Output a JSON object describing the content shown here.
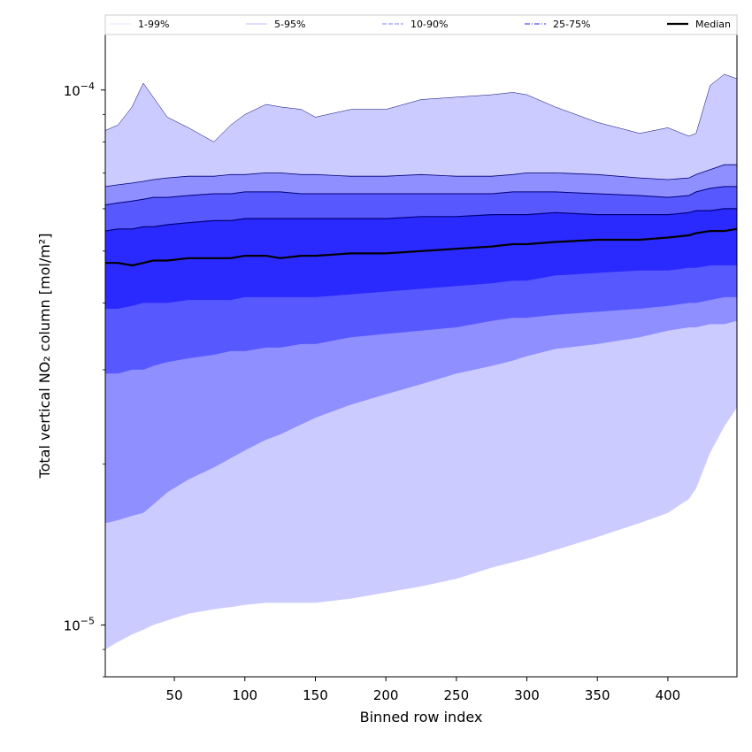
{
  "chart_data": {
    "type": "area",
    "title": "",
    "xlabel": "Binned row index",
    "ylabel": "Total vertical NO₂ column [mol/m²]",
    "xlim": [
      1,
      449
    ],
    "ylim": [
      8e-06,
      0.000127
    ],
    "yscale": "log",
    "x_ticks": [
      50,
      100,
      150,
      200,
      250,
      300,
      350,
      400
    ],
    "y_ticks": [
      {
        "value": 1e-05,
        "base": "10",
        "exp": "−5"
      },
      {
        "value": 0.0001,
        "base": "10",
        "exp": "−4"
      }
    ],
    "legend": {
      "placement": "top",
      "entries": [
        "1-99%",
        "5-95%",
        "10-90%",
        "25-75%",
        "Median"
      ]
    },
    "colors": {
      "band_1_99": "#cbcbff",
      "band_5_95": "#8f8fff",
      "band_10_90": "#5858ff",
      "band_25_75": "#2a2aff",
      "median": "#000000",
      "legend_1_99": "#dcdcff",
      "legend_5_95": "#bcbcff",
      "legend_10_90": "#9a9aff",
      "legend_25_75": "#6b6bff"
    },
    "x": [
      1,
      10,
      20,
      28,
      35,
      45,
      60,
      78,
      90,
      100,
      115,
      125,
      140,
      150,
      175,
      200,
      225,
      250,
      275,
      290,
      300,
      320,
      350,
      380,
      400,
      415,
      420,
      430,
      440,
      449
    ],
    "series": [
      {
        "name": "99%",
        "values": [
          8.4e-05,
          8.6e-05,
          9.3e-05,
          0.000103,
          9.7e-05,
          8.9e-05,
          8.5e-05,
          8e-05,
          8.6e-05,
          9e-05,
          9.4e-05,
          9.3e-05,
          9.2e-05,
          8.9e-05,
          9.2e-05,
          9.2e-05,
          9.6e-05,
          9.7e-05,
          9.8e-05,
          9.9e-05,
          9.8e-05,
          9.3e-05,
          8.7e-05,
          8.3e-05,
          8.5e-05,
          8.2e-05,
          8.3e-05,
          0.000102,
          0.000107,
          0.000105
        ]
      },
      {
        "name": "95%",
        "values": [
          6.6e-05,
          6.65e-05,
          6.7e-05,
          6.75e-05,
          6.8e-05,
          6.85e-05,
          6.9e-05,
          6.9e-05,
          6.95e-05,
          6.95e-05,
          7e-05,
          7e-05,
          6.95e-05,
          6.95e-05,
          6.9e-05,
          6.9e-05,
          6.95e-05,
          6.9e-05,
          6.9e-05,
          6.95e-05,
          7e-05,
          7e-05,
          6.95e-05,
          6.85e-05,
          6.8e-05,
          6.85e-05,
          6.95e-05,
          7.1e-05,
          7.25e-05,
          7.25e-05
        ]
      },
      {
        "name": "90%",
        "values": [
          6.1e-05,
          6.15e-05,
          6.2e-05,
          6.25e-05,
          6.3e-05,
          6.3e-05,
          6.35e-05,
          6.4e-05,
          6.4e-05,
          6.45e-05,
          6.45e-05,
          6.45e-05,
          6.4e-05,
          6.4e-05,
          6.4e-05,
          6.4e-05,
          6.4e-05,
          6.4e-05,
          6.4e-05,
          6.45e-05,
          6.45e-05,
          6.45e-05,
          6.4e-05,
          6.35e-05,
          6.3e-05,
          6.35e-05,
          6.45e-05,
          6.55e-05,
          6.6e-05,
          6.6e-05
        ]
      },
      {
        "name": "75%",
        "values": [
          5.45e-05,
          5.5e-05,
          5.5e-05,
          5.55e-05,
          5.55e-05,
          5.6e-05,
          5.65e-05,
          5.7e-05,
          5.7e-05,
          5.75e-05,
          5.75e-05,
          5.75e-05,
          5.75e-05,
          5.75e-05,
          5.75e-05,
          5.75e-05,
          5.8e-05,
          5.8e-05,
          5.85e-05,
          5.85e-05,
          5.85e-05,
          5.9e-05,
          5.85e-05,
          5.85e-05,
          5.85e-05,
          5.9e-05,
          5.95e-05,
          5.95e-05,
          6e-05,
          6e-05
        ]
      },
      {
        "name": "Median",
        "values": [
          4.75e-05,
          4.75e-05,
          4.7e-05,
          4.75e-05,
          4.8e-05,
          4.8e-05,
          4.85e-05,
          4.85e-05,
          4.85e-05,
          4.9e-05,
          4.9e-05,
          4.85e-05,
          4.9e-05,
          4.9e-05,
          4.95e-05,
          4.95e-05,
          5e-05,
          5.05e-05,
          5.1e-05,
          5.15e-05,
          5.15e-05,
          5.2e-05,
          5.25e-05,
          5.25e-05,
          5.3e-05,
          5.35e-05,
          5.4e-05,
          5.45e-05,
          5.45e-05,
          5.5e-05
        ]
      },
      {
        "name": "25%",
        "values": [
          3.9e-05,
          3.9e-05,
          3.95e-05,
          4e-05,
          4e-05,
          4e-05,
          4.05e-05,
          4.05e-05,
          4.05e-05,
          4.1e-05,
          4.1e-05,
          4.1e-05,
          4.1e-05,
          4.1e-05,
          4.15e-05,
          4.2e-05,
          4.25e-05,
          4.3e-05,
          4.35e-05,
          4.4e-05,
          4.4e-05,
          4.5e-05,
          4.55e-05,
          4.6e-05,
          4.6e-05,
          4.65e-05,
          4.65e-05,
          4.7e-05,
          4.7e-05,
          4.7e-05
        ]
      },
      {
        "name": "10%",
        "values": [
          2.95e-05,
          2.95e-05,
          3e-05,
          3e-05,
          3.05e-05,
          3.1e-05,
          3.15e-05,
          3.2e-05,
          3.25e-05,
          3.25e-05,
          3.3e-05,
          3.3e-05,
          3.35e-05,
          3.35e-05,
          3.45e-05,
          3.5e-05,
          3.55e-05,
          3.6e-05,
          3.7e-05,
          3.75e-05,
          3.75e-05,
          3.8e-05,
          3.85e-05,
          3.9e-05,
          3.95e-05,
          4e-05,
          4e-05,
          4.05e-05,
          4.1e-05,
          4.1e-05
        ]
      },
      {
        "name": "5%",
        "values": [
          1.55e-05,
          1.57e-05,
          1.6e-05,
          1.62e-05,
          1.68e-05,
          1.77e-05,
          1.87e-05,
          1.97e-05,
          2.05e-05,
          2.12e-05,
          2.22e-05,
          2.27e-05,
          2.37e-05,
          2.44e-05,
          2.58e-05,
          2.7e-05,
          2.82e-05,
          2.95e-05,
          3.05e-05,
          3.12e-05,
          3.18e-05,
          3.28e-05,
          3.35e-05,
          3.45e-05,
          3.55e-05,
          3.6e-05,
          3.6e-05,
          3.65e-05,
          3.65e-05,
          3.7e-05
        ]
      },
      {
        "name": "1%",
        "values": [
          9e-06,
          9.3e-06,
          9.6e-06,
          9.8e-06,
          1e-05,
          1.02e-05,
          1.05e-05,
          1.07e-05,
          1.08e-05,
          1.09e-05,
          1.1e-05,
          1.1e-05,
          1.1e-05,
          1.1e-05,
          1.12e-05,
          1.15e-05,
          1.18e-05,
          1.22e-05,
          1.28e-05,
          1.31e-05,
          1.33e-05,
          1.38e-05,
          1.46e-05,
          1.55e-05,
          1.62e-05,
          1.72e-05,
          1.8e-05,
          2.1e-05,
          2.35e-05,
          2.55e-05
        ]
      }
    ]
  }
}
